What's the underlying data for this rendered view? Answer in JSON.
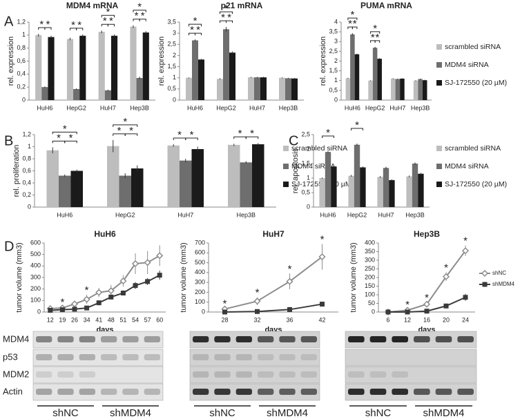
{
  "panels": [
    "A",
    "B",
    "C",
    "D"
  ],
  "blots": {
    "rows": [
      "MDM4",
      "p53",
      "MDM2",
      "Actin"
    ],
    "groups": [
      "shNC",
      "shMDM4"
    ]
  },
  "chart_data": [
    {
      "type": "bar",
      "title": "MDM4 mRNA",
      "y_label": "rel. expression",
      "categories": [
        "HuH6",
        "HepG2",
        "HuH7",
        "Hep3B"
      ],
      "series": [
        {
          "name": "scrambled siRNA",
          "color": "#bdbdbd",
          "values": [
            1.0,
            0.94,
            1.05,
            1.13
          ],
          "errors": [
            0.02,
            0.02,
            0.02,
            0.02
          ]
        },
        {
          "name": "MDM4 siRNA",
          "color": "#6e6e6e",
          "values": [
            0.2,
            0.17,
            0.15,
            0.34
          ],
          "errors": [
            0.01,
            0.01,
            0.01,
            0.02
          ]
        },
        {
          "name": "SJ-172550 (20 µM)",
          "color": "#1a1a1a",
          "values": [
            0.97,
            0.99,
            0.99,
            1.04
          ],
          "errors": [
            0.02,
            0.02,
            0.02,
            0.02
          ]
        }
      ],
      "ylim": [
        0,
        1.2
      ],
      "yticks": [
        0,
        {
          "value": 0.2,
          "label": "0,2"
        },
        {
          "value": 0.4,
          "label": "0,4"
        },
        {
          "value": 0.6,
          "label": "0,6"
        },
        {
          "value": 0.8,
          "label": "0,8"
        },
        1,
        {
          "value": 1.2,
          "label": "1,2"
        }
      ],
      "significance": [
        {
          "category": 0,
          "pair": [
            0,
            1
          ],
          "label": "*"
        },
        {
          "category": 0,
          "pair": [
            1,
            2
          ],
          "label": "*"
        },
        {
          "category": 1,
          "pair": [
            0,
            1
          ],
          "label": "*"
        },
        {
          "category": 1,
          "pair": [
            1,
            2
          ],
          "label": "*"
        },
        {
          "category": 2,
          "pair": [
            0,
            1
          ],
          "label": "*"
        },
        {
          "category": 2,
          "pair": [
            1,
            2
          ],
          "label": "*"
        },
        {
          "category": 2,
          "pair": [
            0,
            2
          ],
          "label": "*"
        },
        {
          "category": 3,
          "pair": [
            0,
            1
          ],
          "label": "*"
        },
        {
          "category": 3,
          "pair": [
            1,
            2
          ],
          "label": "*"
        },
        {
          "category": 3,
          "pair": [
            0,
            2
          ],
          "label": "*"
        }
      ]
    },
    {
      "type": "bar",
      "title": "p21 mRNA",
      "y_label": "rel. expression",
      "categories": [
        "HuH6",
        "HepG2",
        "HuH7",
        "Hep3B"
      ],
      "series": [
        {
          "name": "scrambled siRNA",
          "color": "#bdbdbd",
          "values": [
            1.0,
            0.95,
            1.02,
            1.0
          ],
          "errors": [
            0.02,
            0.03,
            0.02,
            0.02
          ]
        },
        {
          "name": "MDM4 siRNA",
          "color": "#6e6e6e",
          "values": [
            2.68,
            3.18,
            1.02,
            0.98
          ],
          "errors": [
            0.04,
            0.1,
            0.02,
            0.02
          ]
        },
        {
          "name": "SJ-172550 (20 µM)",
          "color": "#1a1a1a",
          "values": [
            1.82,
            2.13,
            1.02,
            0.97
          ],
          "errors": [
            0.03,
            0.05,
            0.02,
            0.02
          ]
        }
      ],
      "ylim": [
        0,
        3.5
      ],
      "yticks": [
        0,
        {
          "value": 0.5,
          "label": "0,5"
        },
        1,
        {
          "value": 1.5,
          "label": "1,5"
        },
        2,
        {
          "value": 2.5,
          "label": "2,5"
        },
        3,
        {
          "value": 3.5,
          "label": "3,5"
        }
      ],
      "significance": [
        {
          "category": 0,
          "pair": [
            0,
            1
          ],
          "label": "*"
        },
        {
          "category": 0,
          "pair": [
            1,
            2
          ],
          "label": "*"
        },
        {
          "category": 0,
          "pair": [
            0,
            2
          ],
          "label": "*"
        },
        {
          "category": 1,
          "pair": [
            0,
            1
          ],
          "label": "*"
        },
        {
          "category": 1,
          "pair": [
            1,
            2
          ],
          "label": "*"
        },
        {
          "category": 1,
          "pair": [
            0,
            2
          ],
          "label": "*"
        }
      ]
    },
    {
      "type": "bar",
      "title": "PUMA mRNA",
      "y_label": "rel. expression",
      "legend": "right",
      "categories": [
        "HuH6",
        "HepG2",
        "HuH7",
        "Hep3B"
      ],
      "series": [
        {
          "name": "scrambled siRNA",
          "color": "#bdbdbd",
          "values": [
            1.12,
            1.0,
            1.1,
            1.0
          ],
          "errors": [
            0.02,
            0.02,
            0.02,
            0.02
          ]
        },
        {
          "name": "MDM4 siRNA",
          "color": "#6e6e6e",
          "values": [
            3.37,
            2.68,
            1.08,
            1.08
          ],
          "errors": [
            0.06,
            0.05,
            0.02,
            0.02
          ]
        },
        {
          "name": "SJ-172550 (20 µM)",
          "color": "#1a1a1a",
          "values": [
            2.35,
            2.12,
            1.1,
            1.02
          ],
          "errors": [
            0.03,
            0.03,
            0.02,
            0.02
          ]
        }
      ],
      "ylim": [
        0,
        4
      ],
      "yticks": [
        0,
        {
          "value": 0.5,
          "label": "0,5"
        },
        1,
        {
          "value": 1.5,
          "label": "1,5"
        },
        2,
        {
          "value": 2.5,
          "label": "2,5"
        },
        3,
        {
          "value": 3.5,
          "label": "3,5"
        },
        4
      ],
      "significance": [
        {
          "category": 0,
          "pair": [
            0,
            1
          ],
          "label": "*"
        },
        {
          "category": 0,
          "pair": [
            1,
            2
          ],
          "label": "*"
        },
        {
          "category": 0,
          "pair": [
            0,
            2
          ],
          "label": "*"
        },
        {
          "category": 1,
          "pair": [
            0,
            1
          ],
          "label": "*"
        },
        {
          "category": 1,
          "pair": [
            1,
            2
          ],
          "label": "*"
        },
        {
          "category": 1,
          "pair": [
            0,
            2
          ],
          "label": "*"
        }
      ]
    },
    {
      "type": "bar",
      "y_label": "rel. proliferation",
      "legend": "right",
      "categories": [
        "HuH6",
        "HepG2",
        "HuH7",
        "Hep3B"
      ],
      "series": [
        {
          "name": "scrambled siRNA",
          "color": "#bdbdbd",
          "values": [
            0.94,
            1.01,
            1.02,
            1.03
          ],
          "errors": [
            0.05,
            0.1,
            0.02,
            0.02
          ]
        },
        {
          "name": "MDM4 siRNA",
          "color": "#6e6e6e",
          "values": [
            0.52,
            0.52,
            0.77,
            0.74
          ],
          "errors": [
            0.02,
            0.04,
            0.03,
            0.02
          ]
        },
        {
          "name": "SJ-172550 (20 µM)",
          "color": "#1a1a1a",
          "values": [
            0.6,
            0.64,
            0.96,
            1.04
          ],
          "errors": [
            0.02,
            0.05,
            0.04,
            0.02
          ]
        }
      ],
      "ylim": [
        0,
        1.2
      ],
      "yticks": [
        0,
        {
          "value": 0.2,
          "label": "0,2"
        },
        {
          "value": 0.4,
          "label": "0,4"
        },
        {
          "value": 0.6,
          "label": "0,6"
        },
        {
          "value": 0.8,
          "label": "0,8"
        },
        1,
        {
          "value": 1.2,
          "label": "1,2"
        }
      ],
      "significance": [
        {
          "category": 0,
          "pair": [
            0,
            1
          ],
          "label": "*"
        },
        {
          "category": 0,
          "pair": [
            1,
            2
          ],
          "label": "*"
        },
        {
          "category": 0,
          "pair": [
            0,
            2
          ],
          "label": "*"
        },
        {
          "category": 1,
          "pair": [
            0,
            1
          ],
          "label": "*"
        },
        {
          "category": 1,
          "pair": [
            1,
            2
          ],
          "label": "*"
        },
        {
          "category": 1,
          "pair": [
            0,
            2
          ],
          "label": "*"
        },
        {
          "category": 2,
          "pair": [
            0,
            1
          ],
          "label": "*"
        },
        {
          "category": 2,
          "pair": [
            1,
            2
          ],
          "label": "*"
        },
        {
          "category": 3,
          "pair": [
            0,
            1
          ],
          "label": "*"
        },
        {
          "category": 3,
          "pair": [
            1,
            2
          ],
          "label": "*"
        }
      ]
    },
    {
      "type": "bar",
      "y_label": "rel. apoptosis",
      "legend": "right",
      "categories": [
        "HuH6",
        "HepG2",
        "HuH7",
        "Hep3B"
      ],
      "series": [
        {
          "name": "scrambled siRNA",
          "color": "#bdbdbd",
          "values": [
            1.0,
            1.08,
            1.04,
            1.06
          ],
          "errors": [
            0.02,
            0.03,
            0.03,
            0.03
          ]
        },
        {
          "name": "MDM4 siRNA",
          "color": "#6e6e6e",
          "values": [
            1.9,
            2.15,
            1.35,
            1.5
          ],
          "errors": [
            0.03,
            0.04,
            0.04,
            0.04
          ]
        },
        {
          "name": "SJ-172550 (20 µM)",
          "color": "#1a1a1a",
          "values": [
            1.4,
            1.37,
            0.93,
            1.15
          ],
          "errors": [
            0.03,
            0.03,
            0.03,
            0.03
          ]
        }
      ],
      "ylim": [
        0,
        2.5
      ],
      "yticks": [
        0,
        {
          "value": 0.5,
          "label": "0,5"
        },
        1,
        {
          "value": 1.5,
          "label": "1,5"
        },
        2,
        {
          "value": 2.5,
          "label": "2,5"
        }
      ],
      "significance": [
        {
          "category": 0,
          "pair": [
            0,
            2
          ],
          "label": "*"
        },
        {
          "category": 1,
          "pair": [
            0,
            2
          ],
          "label": "*"
        }
      ]
    },
    {
      "type": "line",
      "title": "HuH6",
      "x_label": "days",
      "y_label": "tumor volume (mm3)",
      "categories": [
        "12",
        "19",
        "26",
        "34",
        "41",
        "48",
        "51",
        "54",
        "57",
        "60"
      ],
      "series": [
        {
          "name": "shNC",
          "color": "#8c8c8c",
          "marker": "diamond",
          "values": [
            30,
            35,
            70,
            110,
            170,
            185,
            270,
            420,
            430,
            490
          ],
          "errors": [
            10,
            10,
            20,
            40,
            40,
            50,
            50,
            90,
            100,
            90
          ]
        },
        {
          "name": "shMDM4",
          "color": "#3a3a3a",
          "marker": "square",
          "values": [
            15,
            20,
            25,
            35,
            80,
            130,
            165,
            230,
            265,
            320
          ],
          "errors": [
            5,
            5,
            10,
            10,
            20,
            20,
            20,
            30,
            30,
            40
          ]
        }
      ],
      "ylim": [
        0,
        600
      ],
      "yticks": [
        0,
        100,
        200,
        300,
        400,
        500,
        600
      ],
      "significance": [
        {
          "index": 1,
          "label": "*"
        },
        {
          "index": 3,
          "label": "*"
        }
      ]
    },
    {
      "type": "line",
      "title": "HuH7",
      "x_label": "days",
      "y_label": "tumor volume (mm3)",
      "categories": [
        "28",
        "32",
        "36",
        "42"
      ],
      "series": [
        {
          "name": "shNC",
          "color": "#8c8c8c",
          "marker": "diamond",
          "values": [
            30,
            110,
            310,
            560
          ],
          "errors": [
            10,
            40,
            80,
            130
          ]
        },
        {
          "name": "shMDM4",
          "color": "#3a3a3a",
          "marker": "square",
          "values": [
            0,
            5,
            25,
            80
          ],
          "errors": [
            2,
            3,
            8,
            20
          ]
        }
      ],
      "ylim": [
        0,
        700
      ],
      "yticks": [
        0,
        100,
        200,
        300,
        400,
        500,
        600,
        700
      ],
      "significance": [
        {
          "index": 0,
          "label": "*"
        },
        {
          "index": 1,
          "label": "*"
        },
        {
          "index": 2,
          "label": "*"
        },
        {
          "index": 3,
          "label": "*"
        }
      ]
    },
    {
      "type": "line",
      "title": "Hep3B",
      "x_label": "days",
      "y_label": "tumor volume (mm3)",
      "legend": "right",
      "categories": [
        "6",
        "12",
        "16",
        "20",
        "24"
      ],
      "series": [
        {
          "name": "shNC",
          "color": "#8c8c8c",
          "marker": "diamond",
          "values": [
            0,
            10,
            45,
            205,
            355
          ],
          "errors": [
            2,
            5,
            10,
            25,
            30
          ]
        },
        {
          "name": "shMDM4",
          "color": "#3a3a3a",
          "marker": "square",
          "values": [
            0,
            0,
            5,
            35,
            85
          ],
          "errors": [
            2,
            2,
            3,
            8,
            20
          ]
        }
      ],
      "ylim": [
        0,
        400
      ],
      "yticks": [
        0,
        50,
        100,
        150,
        200,
        250,
        300,
        350,
        400
      ],
      "significance": [
        {
          "index": 1,
          "label": "*"
        },
        {
          "index": 2,
          "label": "*"
        },
        {
          "index": 3,
          "label": "*"
        },
        {
          "index": 4,
          "label": "*"
        }
      ]
    }
  ]
}
